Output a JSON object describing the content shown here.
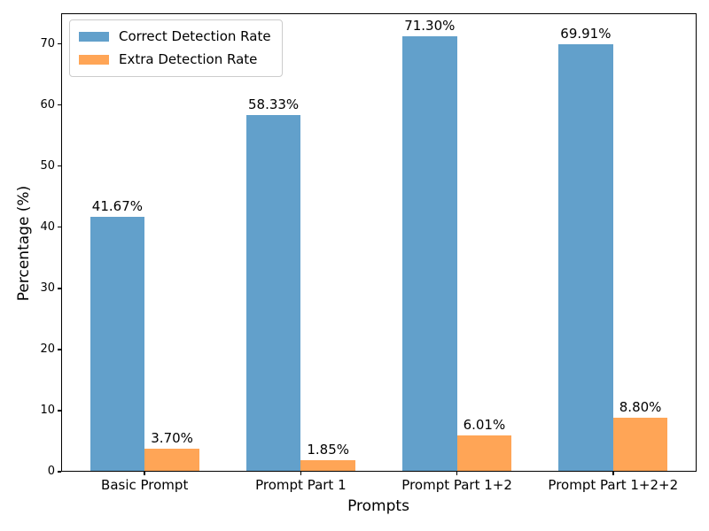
{
  "chart_data": {
    "type": "bar",
    "title": "",
    "xlabel": "Prompts",
    "ylabel": "Percentage (%)",
    "categories": [
      "Basic Prompt",
      "Prompt Part 1",
      "Prompt Part 1+2",
      "Prompt Part 1+2+2"
    ],
    "series": [
      {
        "name": "Correct Detection Rate",
        "color": "#62A0CB",
        "values": [
          41.67,
          58.33,
          71.3,
          69.91
        ],
        "labels": [
          "41.67%",
          "58.33%",
          "71.30%",
          "69.91%"
        ]
      },
      {
        "name": "Extra Detection Rate",
        "color": "#FFA556",
        "values": [
          3.7,
          1.85,
          6.01,
          8.8
        ],
        "labels": [
          "3.70%",
          "1.85%",
          "6.01%",
          "8.80%"
        ]
      }
    ],
    "ylim": [
      0,
      75
    ],
    "yticks": [
      0,
      10,
      20,
      30,
      40,
      50,
      60,
      70
    ],
    "ytick_labels": [
      "0",
      "10",
      "20",
      "30",
      "40",
      "50",
      "60",
      "70"
    ],
    "bar_width_fraction": 0.35,
    "xlim": [
      -0.535,
      3.535
    ],
    "legend_position": "upper left",
    "grid": false,
    "axis_color": "#000000",
    "background_color": "#ffffff",
    "legend_border_color": "#cccccc"
  }
}
